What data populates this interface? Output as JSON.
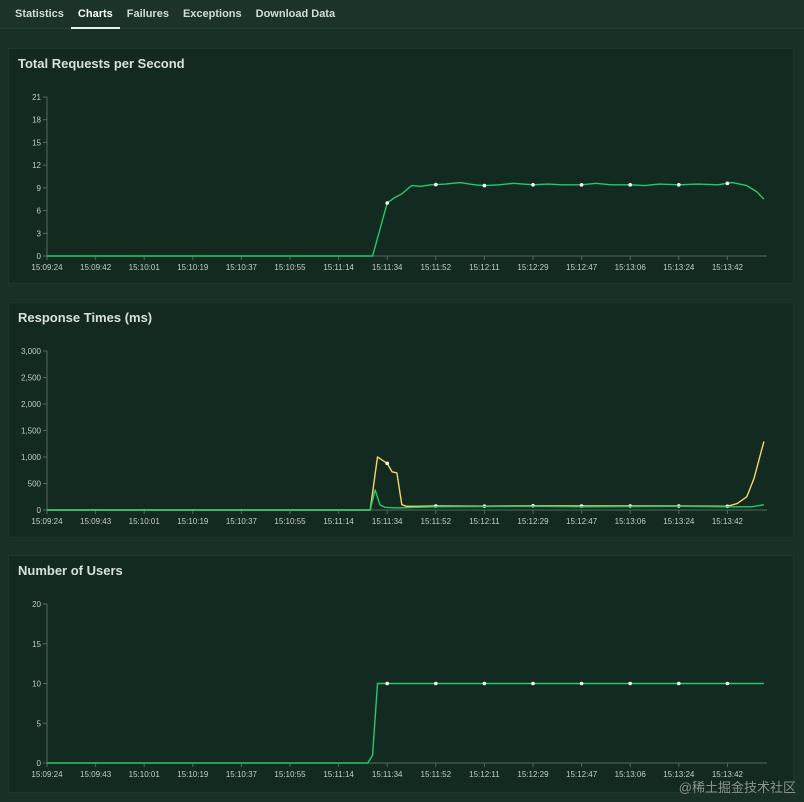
{
  "tabs": [
    {
      "label": "Statistics",
      "active": false
    },
    {
      "label": "Charts",
      "active": true
    },
    {
      "label": "Failures",
      "active": false
    },
    {
      "label": "Exceptions",
      "active": false
    },
    {
      "label": "Download Data",
      "active": false
    }
  ],
  "watermark": "@稀土掘金技术社区",
  "colors": {
    "green": "#27c86d",
    "yellow": "#f2d770",
    "axis": "#54695e",
    "label": "#c4cec9"
  },
  "chart_data": [
    {
      "type": "line",
      "title": "Total Requests per Second",
      "x_tick_labels": [
        "15:09:24",
        "15:09:42",
        "15:10:01",
        "15:10:19",
        "15:10:37",
        "15:10:55",
        "15:11:14",
        "15:11:34",
        "15:11:52",
        "15:12:11",
        "15:12:29",
        "15:12:47",
        "15:13:06",
        "15:13:24",
        "15:13:42"
      ],
      "y_ticks": [
        "0",
        "3",
        "6",
        "9",
        "12",
        "15",
        "18",
        "21"
      ],
      "y_tick_values": [
        0,
        3,
        6,
        9,
        12,
        15,
        18,
        21
      ],
      "ylim": [
        0,
        21
      ],
      "x_range_index": [
        0,
        14.75
      ],
      "series": [
        {
          "color": "#27c86d",
          "x": [
            0,
            6.7,
            6.85,
            7.0,
            7.15,
            7.3,
            7.5,
            7.7,
            7.9,
            8.2,
            8.5,
            8.8,
            9.0,
            9.3,
            9.6,
            10.0,
            10.3,
            10.6,
            11.0,
            11.3,
            11.6,
            12.0,
            12.3,
            12.6,
            13.0,
            13.4,
            13.8,
            14.1,
            14.4,
            14.6,
            14.75
          ],
          "y": [
            0,
            0,
            3.5,
            7.0,
            7.7,
            8.2,
            9.3,
            9.2,
            9.4,
            9.5,
            9.7,
            9.4,
            9.3,
            9.4,
            9.6,
            9.4,
            9.5,
            9.4,
            9.4,
            9.6,
            9.4,
            9.4,
            9.3,
            9.5,
            9.4,
            9.5,
            9.4,
            9.7,
            9.3,
            8.5,
            7.5
          ],
          "markers": [
            7.0,
            8.0,
            9.0,
            10.0,
            11.0,
            12.0,
            13.0,
            14.0
          ]
        }
      ]
    },
    {
      "type": "line",
      "title": "Response Times (ms)",
      "x_tick_labels": [
        "15:09:24",
        "15:09:43",
        "15:10:01",
        "15:10:19",
        "15:10:37",
        "15:10:55",
        "15:11:14",
        "15:11:34",
        "15:11:52",
        "15:12:11",
        "15:12:29",
        "15:12:47",
        "15:13:06",
        "15:13:24",
        "15:13:42"
      ],
      "y_ticks": [
        "0",
        "500",
        "1,000",
        "1,500",
        "2,000",
        "2,500",
        "3,000"
      ],
      "y_tick_values": [
        0,
        500,
        1000,
        1500,
        2000,
        2500,
        3000
      ],
      "ylim": [
        0,
        3000
      ],
      "x_range_index": [
        0,
        14.75
      ],
      "series": [
        {
          "color": "#f2d770",
          "x": [
            0,
            6.65,
            6.8,
            7.0,
            7.1,
            7.2,
            7.3,
            7.4,
            7.6,
            8.0,
            9.0,
            10.0,
            11.0,
            12.0,
            13.0,
            14.0,
            14.2,
            14.4,
            14.55,
            14.65,
            14.75
          ],
          "y": [
            0,
            0,
            1000,
            880,
            720,
            700,
            100,
            70,
            70,
            75,
            72,
            80,
            75,
            75,
            75,
            70,
            120,
            250,
            600,
            950,
            1290
          ],
          "markers": [
            7.0,
            8.0,
            9.0,
            10.0,
            11.0,
            12.0,
            13.0,
            14.0
          ]
        },
        {
          "color": "#27c86d",
          "x": [
            0,
            6.65,
            6.75,
            6.85,
            6.95,
            7.2,
            8.0,
            9.0,
            10.0,
            11.0,
            12.0,
            13.0,
            14.0,
            14.5,
            14.75
          ],
          "y": [
            0,
            0,
            380,
            100,
            50,
            40,
            60,
            65,
            70,
            60,
            65,
            70,
            60,
            60,
            100
          ],
          "markers": []
        }
      ]
    },
    {
      "type": "line",
      "title": "Number of Users",
      "x_tick_labels": [
        "15:09:24",
        "15:09:43",
        "15:10:01",
        "15:10:19",
        "15:10:37",
        "15:10:55",
        "15:11:14",
        "15:11:34",
        "15:11:52",
        "15:12:11",
        "15:12:29",
        "15:12:47",
        "15:13:06",
        "15:13:24",
        "15:13:42"
      ],
      "y_ticks": [
        "0",
        "5",
        "10",
        "15",
        "20"
      ],
      "y_tick_values": [
        0,
        5,
        10,
        15,
        20
      ],
      "ylim": [
        0,
        20
      ],
      "x_range_index": [
        0,
        14.75
      ],
      "series": [
        {
          "color": "#27c86d",
          "x": [
            0,
            6.6,
            6.7,
            6.8,
            7.0,
            8.0,
            9.0,
            10.0,
            11.0,
            12.0,
            13.0,
            14.0,
            14.75
          ],
          "y": [
            0,
            0,
            1,
            10,
            10,
            10,
            10,
            10,
            10,
            10,
            10,
            10,
            10
          ],
          "markers": [
            7.0,
            8.0,
            9.0,
            10.0,
            11.0,
            12.0,
            13.0,
            14.0
          ]
        }
      ]
    }
  ]
}
